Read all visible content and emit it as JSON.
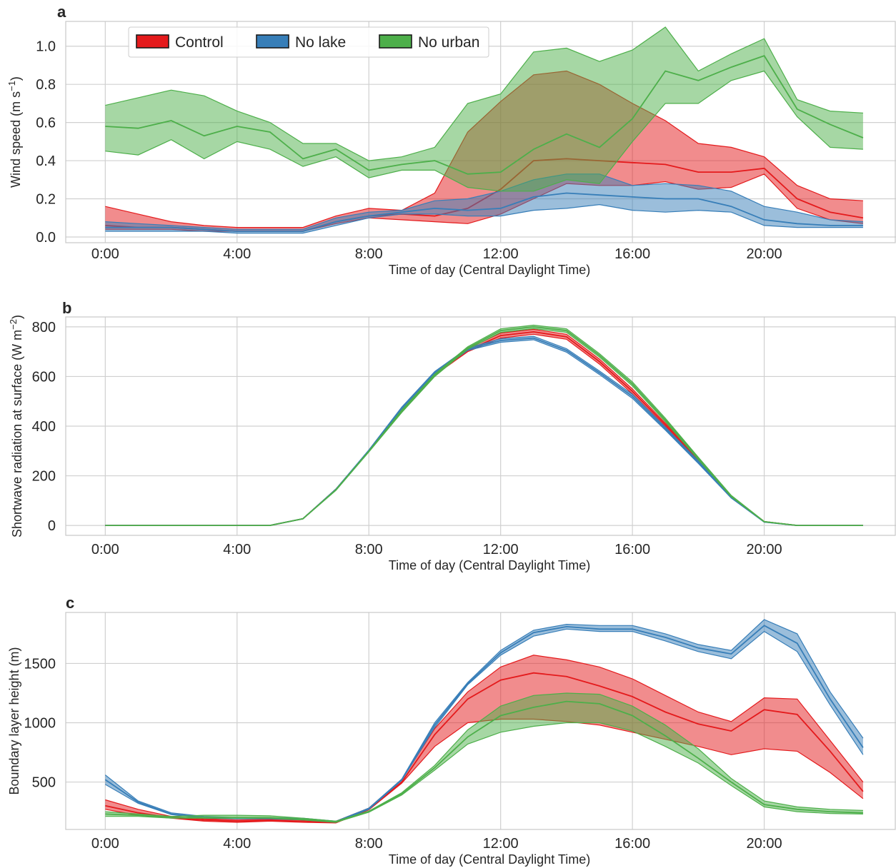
{
  "chart_data": [
    {
      "type": "area",
      "panel_label": "a",
      "xlabel": "Time of day (Central Daylight Time)",
      "ylabel": "Wind speed (m s",
      "ylabel_sup": "−1",
      "ylabel_close": ")",
      "xlim": [
        -1.2,
        24.0
      ],
      "ylim": [
        -0.03,
        1.13
      ],
      "x_ticks": [
        0,
        4,
        8,
        12,
        16,
        20
      ],
      "x_tick_labels": [
        "0:00",
        "4:00",
        "8:00",
        "12:00",
        "16:00",
        "20:00"
      ],
      "y_ticks": [
        0.0,
        0.2,
        0.4,
        0.6,
        0.8,
        1.0
      ],
      "y_tick_labels": [
        "0.0",
        "0.2",
        "0.4",
        "0.6",
        "0.8",
        "1.0"
      ],
      "grid": true,
      "legend_placement": "top-left",
      "x": [
        0,
        1,
        2,
        3,
        4,
        5,
        6,
        7,
        8,
        9,
        10,
        11,
        12,
        13,
        14,
        15,
        16,
        17,
        18,
        19,
        20,
        21,
        22,
        23
      ],
      "series": [
        {
          "name": "Control",
          "color": "#e41a1c",
          "mean": [
            0.06,
            0.05,
            0.05,
            0.04,
            0.03,
            0.03,
            0.03,
            0.08,
            0.11,
            0.12,
            0.11,
            0.15,
            0.25,
            0.4,
            0.41,
            0.4,
            0.39,
            0.38,
            0.34,
            0.34,
            0.36,
            0.2,
            0.13,
            0.1
          ],
          "lower": [
            0.04,
            0.04,
            0.04,
            0.03,
            0.03,
            0.03,
            0.03,
            0.07,
            0.1,
            0.09,
            0.08,
            0.07,
            0.12,
            0.2,
            0.28,
            0.27,
            0.27,
            0.29,
            0.25,
            0.26,
            0.33,
            0.15,
            0.09,
            0.07
          ],
          "upper": [
            0.16,
            0.12,
            0.08,
            0.06,
            0.05,
            0.05,
            0.05,
            0.11,
            0.15,
            0.14,
            0.23,
            0.55,
            0.71,
            0.85,
            0.87,
            0.8,
            0.7,
            0.61,
            0.49,
            0.47,
            0.42,
            0.27,
            0.2,
            0.19
          ]
        },
        {
          "name": "No lake",
          "color": "#377eb8",
          "mean": [
            0.05,
            0.05,
            0.05,
            0.04,
            0.03,
            0.03,
            0.03,
            0.08,
            0.11,
            0.13,
            0.15,
            0.14,
            0.15,
            0.21,
            0.23,
            0.22,
            0.21,
            0.2,
            0.2,
            0.16,
            0.09,
            0.07,
            0.06,
            0.06
          ],
          "lower": [
            0.03,
            0.03,
            0.03,
            0.03,
            0.02,
            0.02,
            0.02,
            0.06,
            0.1,
            0.12,
            0.12,
            0.11,
            0.11,
            0.14,
            0.15,
            0.17,
            0.14,
            0.13,
            0.14,
            0.13,
            0.06,
            0.05,
            0.05,
            0.05
          ],
          "upper": [
            0.08,
            0.07,
            0.06,
            0.05,
            0.04,
            0.04,
            0.04,
            0.1,
            0.13,
            0.14,
            0.19,
            0.2,
            0.24,
            0.3,
            0.33,
            0.33,
            0.27,
            0.28,
            0.27,
            0.24,
            0.16,
            0.13,
            0.09,
            0.08
          ]
        },
        {
          "name": "No urban",
          "color": "#4daf4a",
          "mean": [
            0.58,
            0.57,
            0.61,
            0.53,
            0.58,
            0.55,
            0.41,
            0.46,
            0.35,
            0.38,
            0.4,
            0.33,
            0.34,
            0.46,
            0.54,
            0.47,
            0.62,
            0.87,
            0.82,
            0.89,
            0.95,
            0.67,
            0.59,
            0.52
          ],
          "lower": [
            0.45,
            0.43,
            0.51,
            0.41,
            0.5,
            0.46,
            0.37,
            0.42,
            0.31,
            0.35,
            0.35,
            0.26,
            0.24,
            0.24,
            0.3,
            0.28,
            0.5,
            0.7,
            0.7,
            0.82,
            0.87,
            0.63,
            0.47,
            0.46
          ],
          "upper": [
            0.69,
            0.73,
            0.77,
            0.74,
            0.66,
            0.6,
            0.49,
            0.49,
            0.4,
            0.42,
            0.47,
            0.7,
            0.75,
            0.97,
            0.99,
            0.92,
            0.98,
            1.1,
            0.87,
            0.96,
            1.04,
            0.72,
            0.66,
            0.65
          ]
        }
      ]
    },
    {
      "type": "area",
      "panel_label": "b",
      "xlabel": "Time of day (Central Daylight Time)",
      "ylabel": "Shortwave radiation at surface (W m",
      "ylabel_sup": "−2",
      "ylabel_close": ")",
      "xlim": [
        -1.2,
        24.0
      ],
      "ylim": [
        -40,
        840
      ],
      "x_ticks": [
        0,
        4,
        8,
        12,
        16,
        20
      ],
      "x_tick_labels": [
        "0:00",
        "4:00",
        "8:00",
        "12:00",
        "16:00",
        "20:00"
      ],
      "y_ticks": [
        0,
        200,
        400,
        600,
        800
      ],
      "y_tick_labels": [
        "0",
        "200",
        "400",
        "600",
        "800"
      ],
      "grid": true,
      "x": [
        0,
        1,
        2,
        3,
        4,
        5,
        6,
        7,
        8,
        9,
        10,
        11,
        12,
        13,
        14,
        15,
        16,
        17,
        18,
        19,
        20,
        21,
        22,
        23
      ],
      "series": [
        {
          "name": "Control",
          "color": "#e41a1c",
          "mean": [
            0,
            0,
            0,
            0,
            0,
            0,
            27,
            145,
            300,
            465,
            610,
            705,
            765,
            780,
            760,
            660,
            540,
            405,
            265,
            115,
            15,
            0,
            0,
            0
          ],
          "lower": [
            0,
            0,
            0,
            0,
            0,
            0,
            26,
            143,
            298,
            460,
            605,
            700,
            755,
            770,
            750,
            650,
            530,
            398,
            260,
            112,
            14,
            0,
            0,
            0
          ],
          "upper": [
            0,
            0,
            0,
            0,
            0,
            0,
            28,
            147,
            302,
            470,
            615,
            712,
            775,
            790,
            770,
            670,
            550,
            412,
            270,
            118,
            16,
            0,
            0,
            0
          ]
        },
        {
          "name": "No lake",
          "color": "#377eb8",
          "mean": [
            0,
            0,
            0,
            0,
            0,
            0,
            27,
            145,
            302,
            472,
            615,
            710,
            745,
            755,
            705,
            615,
            520,
            390,
            255,
            113,
            14,
            0,
            0,
            0
          ],
          "lower": [
            0,
            0,
            0,
            0,
            0,
            0,
            26,
            143,
            300,
            467,
            610,
            705,
            738,
            748,
            698,
            608,
            512,
            384,
            250,
            110,
            13,
            0,
            0,
            0
          ],
          "upper": [
            0,
            0,
            0,
            0,
            0,
            0,
            28,
            147,
            304,
            477,
            620,
            715,
            752,
            762,
            712,
            622,
            528,
            396,
            260,
            116,
            15,
            0,
            0,
            0
          ]
        },
        {
          "name": "No urban",
          "color": "#4daf4a",
          "mean": [
            0,
            0,
            0,
            0,
            0,
            0,
            27,
            143,
            298,
            460,
            605,
            715,
            785,
            800,
            785,
            685,
            570,
            425,
            270,
            118,
            15,
            0,
            0,
            0
          ],
          "lower": [
            0,
            0,
            0,
            0,
            0,
            0,
            26,
            141,
            296,
            455,
            600,
            710,
            778,
            793,
            778,
            678,
            562,
            418,
            265,
            115,
            14,
            0,
            0,
            0
          ],
          "upper": [
            0,
            0,
            0,
            0,
            0,
            0,
            28,
            145,
            300,
            465,
            610,
            720,
            792,
            807,
            792,
            692,
            578,
            432,
            275,
            121,
            16,
            0,
            0,
            0
          ]
        }
      ]
    },
    {
      "type": "area",
      "panel_label": "c",
      "xlabel": "Time of day (Central Daylight Time)",
      "ylabel": "Boundary layer height (m)",
      "xlim": [
        -1.2,
        24.0
      ],
      "ylim": [
        100,
        1930
      ],
      "x_ticks": [
        0,
        4,
        8,
        12,
        16,
        20
      ],
      "x_tick_labels": [
        "0:00",
        "4:00",
        "8:00",
        "12:00",
        "16:00",
        "20:00"
      ],
      "y_ticks": [
        500,
        1000,
        1500
      ],
      "y_tick_labels": [
        "500",
        "1000",
        "1500"
      ],
      "grid": true,
      "x": [
        0,
        1,
        2,
        3,
        4,
        5,
        6,
        7,
        8,
        9,
        10,
        11,
        12,
        13,
        14,
        15,
        16,
        17,
        18,
        19,
        20,
        21,
        22,
        23
      ],
      "series": [
        {
          "name": "Control",
          "color": "#e41a1c",
          "mean": [
            300,
            240,
            200,
            180,
            170,
            175,
            170,
            160,
            270,
            500,
            900,
            1200,
            1360,
            1420,
            1390,
            1310,
            1220,
            1090,
            990,
            930,
            1110,
            1070,
            760,
            420
          ],
          "lower": [
            270,
            220,
            195,
            170,
            160,
            170,
            160,
            155,
            265,
            490,
            800,
            1000,
            1030,
            1030,
            1010,
            980,
            920,
            860,
            800,
            730,
            780,
            760,
            580,
            360
          ],
          "upper": [
            350,
            270,
            210,
            190,
            180,
            185,
            180,
            170,
            280,
            520,
            950,
            1260,
            1470,
            1570,
            1530,
            1470,
            1370,
            1230,
            1090,
            1010,
            1210,
            1200,
            850,
            500
          ]
        },
        {
          "name": "No lake",
          "color": "#377eb8",
          "mean": [
            520,
            330,
            230,
            200,
            195,
            195,
            185,
            165,
            275,
            520,
            980,
            1330,
            1590,
            1760,
            1810,
            1790,
            1790,
            1720,
            1630,
            1580,
            1820,
            1670,
            1200,
            790
          ],
          "lower": [
            480,
            320,
            225,
            195,
            190,
            190,
            180,
            160,
            270,
            515,
            960,
            1320,
            1570,
            1730,
            1790,
            1770,
            1770,
            1690,
            1600,
            1540,
            1770,
            1600,
            1150,
            730
          ],
          "upper": [
            560,
            340,
            240,
            210,
            200,
            200,
            195,
            170,
            280,
            525,
            1000,
            1340,
            1610,
            1780,
            1830,
            1820,
            1820,
            1750,
            1660,
            1610,
            1870,
            1750,
            1260,
            870
          ]
        },
        {
          "name": "No urban",
          "color": "#4daf4a",
          "mean": [
            230,
            220,
            200,
            200,
            200,
            200,
            185,
            165,
            250,
            400,
            620,
            880,
            1060,
            1130,
            1180,
            1160,
            1060,
            890,
            700,
            500,
            310,
            270,
            250,
            240
          ],
          "lower": [
            210,
            210,
            195,
            195,
            195,
            195,
            180,
            160,
            245,
            390,
            600,
            820,
            920,
            970,
            1000,
            1000,
            930,
            800,
            660,
            470,
            290,
            250,
            235,
            230
          ],
          "upper": [
            250,
            230,
            210,
            220,
            220,
            215,
            195,
            170,
            255,
            410,
            640,
            940,
            1140,
            1230,
            1250,
            1240,
            1140,
            980,
            780,
            530,
            340,
            290,
            270,
            260
          ]
        }
      ]
    }
  ]
}
